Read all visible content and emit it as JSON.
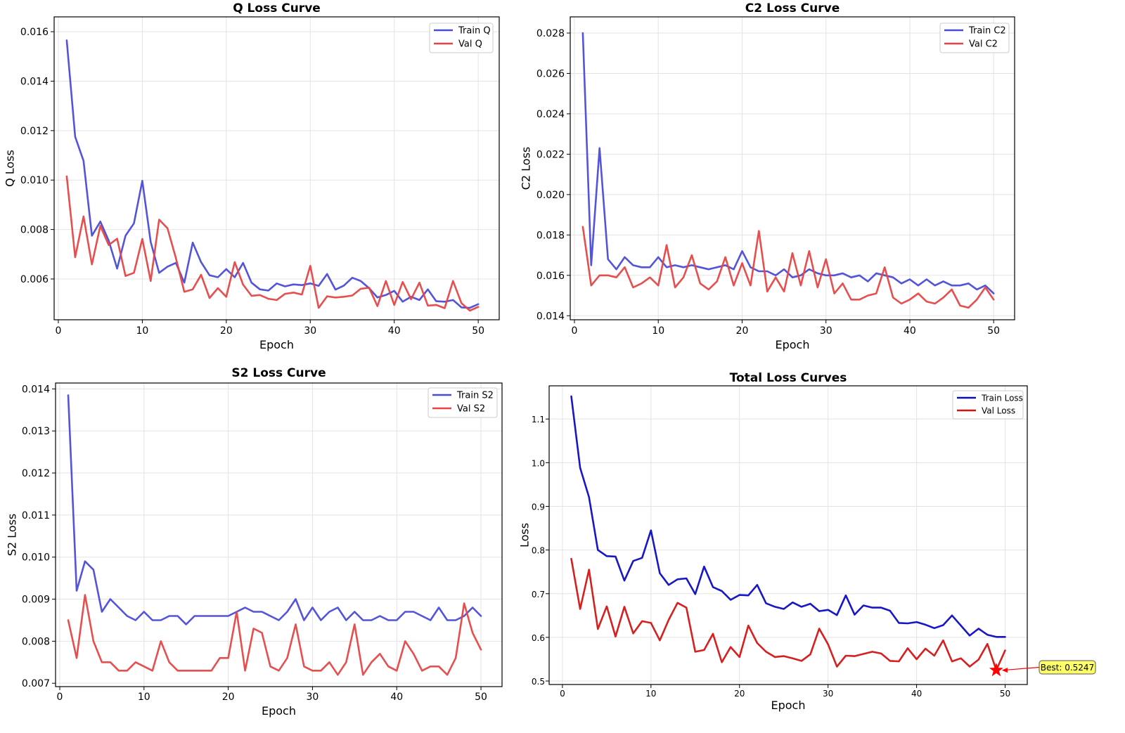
{
  "chart_data": [
    {
      "type": "line",
      "title": "Q Loss Curve",
      "xlabel": "Epoch",
      "ylabel": "Q Loss",
      "xlim": [
        -0.5,
        52.5
      ],
      "ylim": [
        0.00435,
        0.0166
      ],
      "xticks": [
        0,
        10,
        20,
        30,
        40,
        50
      ],
      "yticks": [
        0.006,
        0.008,
        0.01,
        0.012,
        0.014,
        0.016
      ],
      "ytick_labels": [
        "0.006",
        "0.008",
        "0.010",
        "0.012",
        "0.014",
        "0.016"
      ],
      "grid": true,
      "legend": "top-right",
      "x": [
        1,
        2,
        3,
        4,
        5,
        6,
        7,
        8,
        9,
        10,
        11,
        12,
        13,
        14,
        15,
        16,
        17,
        18,
        19,
        20,
        21,
        22,
        23,
        24,
        25,
        26,
        27,
        28,
        29,
        30,
        31,
        32,
        33,
        34,
        35,
        36,
        37,
        38,
        39,
        40,
        41,
        42,
        43,
        44,
        45,
        46,
        47,
        48,
        49,
        50
      ],
      "series": [
        {
          "name": "Train Q",
          "color": "#4b4bd9",
          "values": [
            0.01565,
            0.01175,
            0.01078,
            0.00775,
            0.00832,
            0.00755,
            0.00642,
            0.00775,
            0.00825,
            0.00997,
            0.0075,
            0.00625,
            0.0065,
            0.00665,
            0.00585,
            0.00747,
            0.00668,
            0.00615,
            0.00607,
            0.0064,
            0.00607,
            0.00665,
            0.00585,
            0.00558,
            0.00553,
            0.00582,
            0.0057,
            0.00578,
            0.00575,
            0.00582,
            0.00572,
            0.0062,
            0.00557,
            0.00573,
            0.00605,
            0.00592,
            0.00563,
            0.00525,
            0.00535,
            0.00552,
            0.00508,
            0.00528,
            0.00515,
            0.00558,
            0.0051,
            0.00508,
            0.00515,
            0.00485,
            0.00483,
            0.00498
          ]
        },
        {
          "name": "Val Q",
          "color": "#e64545",
          "values": [
            0.01015,
            0.00688,
            0.00853,
            0.00659,
            0.00815,
            0.00737,
            0.00763,
            0.00612,
            0.00625,
            0.00762,
            0.00592,
            0.0084,
            0.00805,
            0.00684,
            0.00548,
            0.00558,
            0.00617,
            0.00523,
            0.00563,
            0.00528,
            0.00668,
            0.00577,
            0.00532,
            0.00535,
            0.0052,
            0.00515,
            0.0054,
            0.00545,
            0.00537,
            0.00653,
            0.00483,
            0.0053,
            0.00525,
            0.00528,
            0.00533,
            0.0056,
            0.00565,
            0.0049,
            0.00592,
            0.00495,
            0.00588,
            0.00518,
            0.00585,
            0.00492,
            0.00495,
            0.00482,
            0.00592,
            0.00502,
            0.00472,
            0.00487
          ]
        }
      ]
    },
    {
      "type": "line",
      "title": "C2 Loss Curve",
      "xlabel": "Epoch",
      "ylabel": "C2 Loss",
      "xlim": [
        -0.5,
        52.5
      ],
      "ylim": [
        0.0138,
        0.0288
      ],
      "xticks": [
        0,
        10,
        20,
        30,
        40,
        50
      ],
      "yticks": [
        0.014,
        0.016,
        0.018,
        0.02,
        0.022,
        0.024,
        0.026,
        0.028
      ],
      "ytick_labels": [
        "0.014",
        "0.016",
        "0.018",
        "0.020",
        "0.022",
        "0.024",
        "0.026",
        "0.028"
      ],
      "grid": true,
      "legend": "top-right",
      "x": [
        1,
        2,
        3,
        4,
        5,
        6,
        7,
        8,
        9,
        10,
        11,
        12,
        13,
        14,
        15,
        16,
        17,
        18,
        19,
        20,
        21,
        22,
        23,
        24,
        25,
        26,
        27,
        28,
        29,
        30,
        31,
        32,
        33,
        34,
        35,
        36,
        37,
        38,
        39,
        40,
        41,
        42,
        43,
        44,
        45,
        46,
        47,
        48,
        49,
        50
      ],
      "series": [
        {
          "name": "Train C2",
          "color": "#4b4bd9",
          "values": [
            0.028,
            0.0165,
            0.0223,
            0.0168,
            0.0163,
            0.0169,
            0.0165,
            0.0164,
            0.0164,
            0.0169,
            0.0164,
            0.0165,
            0.0164,
            0.0165,
            0.0164,
            0.0163,
            0.0164,
            0.0165,
            0.0163,
            0.0172,
            0.0164,
            0.0162,
            0.0162,
            0.016,
            0.0163,
            0.0159,
            0.016,
            0.0163,
            0.0161,
            0.016,
            0.016,
            0.0161,
            0.0159,
            0.016,
            0.0157,
            0.0161,
            0.016,
            0.0159,
            0.0156,
            0.0158,
            0.0155,
            0.0158,
            0.0155,
            0.0157,
            0.0155,
            0.0155,
            0.0156,
            0.0153,
            0.0155,
            0.0151
          ]
        },
        {
          "name": "Val C2",
          "color": "#e64545",
          "values": [
            0.0184,
            0.0155,
            0.016,
            0.016,
            0.0159,
            0.0164,
            0.0154,
            0.0156,
            0.0159,
            0.0155,
            0.0175,
            0.0154,
            0.0159,
            0.017,
            0.0156,
            0.0153,
            0.0157,
            0.0169,
            0.0155,
            0.0166,
            0.0155,
            0.0182,
            0.0152,
            0.0159,
            0.0152,
            0.0171,
            0.0155,
            0.0172,
            0.0154,
            0.0168,
            0.0151,
            0.0156,
            0.0148,
            0.0148,
            0.015,
            0.0151,
            0.0164,
            0.0149,
            0.0146,
            0.0148,
            0.0151,
            0.0147,
            0.0146,
            0.0149,
            0.0153,
            0.0145,
            0.0144,
            0.0148,
            0.0154,
            0.0148
          ]
        }
      ]
    },
    {
      "type": "line",
      "title": "S2 Loss Curve",
      "xlabel": "Epoch",
      "ylabel": "S2 Loss",
      "xlim": [
        -0.5,
        52.5
      ],
      "ylim": [
        0.00692,
        0.01414
      ],
      "xticks": [
        0,
        10,
        20,
        30,
        40,
        50
      ],
      "yticks": [
        0.007,
        0.008,
        0.009,
        0.01,
        0.011,
        0.012,
        0.013,
        0.014
      ],
      "ytick_labels": [
        "0.007",
        "0.008",
        "0.009",
        "0.010",
        "0.011",
        "0.012",
        "0.013",
        "0.014"
      ],
      "grid": true,
      "legend": "top-right",
      "x": [
        1,
        2,
        3,
        4,
        5,
        6,
        7,
        8,
        9,
        10,
        11,
        12,
        13,
        14,
        15,
        16,
        17,
        18,
        19,
        20,
        21,
        22,
        23,
        24,
        25,
        26,
        27,
        28,
        29,
        30,
        31,
        32,
        33,
        34,
        35,
        36,
        37,
        38,
        39,
        40,
        41,
        42,
        43,
        44,
        45,
        46,
        47,
        48,
        49,
        50
      ],
      "series": [
        {
          "name": "Train S2",
          "color": "#4b4bd9",
          "values": [
            0.01385,
            0.0092,
            0.0099,
            0.0097,
            0.0087,
            0.009,
            0.0088,
            0.0086,
            0.0085,
            0.0087,
            0.0085,
            0.0085,
            0.0086,
            0.0086,
            0.0084,
            0.0086,
            0.0086,
            0.0086,
            0.0086,
            0.0086,
            0.0087,
            0.0088,
            0.0087,
            0.0087,
            0.0086,
            0.0085,
            0.0087,
            0.009,
            0.0085,
            0.0088,
            0.0085,
            0.0087,
            0.0088,
            0.0085,
            0.0087,
            0.0085,
            0.0085,
            0.0086,
            0.0085,
            0.0085,
            0.0087,
            0.0087,
            0.0086,
            0.0085,
            0.0088,
            0.0085,
            0.0085,
            0.0086,
            0.0088,
            0.0086
          ]
        },
        {
          "name": "Val S2",
          "color": "#e64545",
          "values": [
            0.0085,
            0.0076,
            0.0091,
            0.008,
            0.0075,
            0.0075,
            0.0073,
            0.0073,
            0.0075,
            0.0074,
            0.0073,
            0.008,
            0.0075,
            0.0073,
            0.0073,
            0.0073,
            0.0073,
            0.0073,
            0.0076,
            0.0076,
            0.0087,
            0.0073,
            0.0083,
            0.0082,
            0.0074,
            0.0073,
            0.0076,
            0.0084,
            0.0074,
            0.0073,
            0.0073,
            0.0075,
            0.0072,
            0.0075,
            0.0084,
            0.0072,
            0.0075,
            0.0077,
            0.0074,
            0.0073,
            0.008,
            0.0077,
            0.0073,
            0.0074,
            0.0074,
            0.0072,
            0.0076,
            0.0089,
            0.0082,
            0.0078
          ]
        }
      ]
    },
    {
      "type": "line",
      "title": "Total Loss Curves",
      "xlabel": "Epoch",
      "ylabel": "Loss",
      "xlim": [
        -1.5,
        52.5
      ],
      "ylim": [
        0.492,
        1.176
      ],
      "xticks": [
        0,
        10,
        20,
        30,
        40,
        50
      ],
      "yticks": [
        0.5,
        0.6,
        0.7,
        0.8,
        0.9,
        1.0,
        1.1
      ],
      "ytick_labels": [
        "0.5",
        "0.6",
        "0.7",
        "0.8",
        "0.9",
        "1.0",
        "1.1"
      ],
      "grid": true,
      "legend": "top-right",
      "x": [
        1,
        2,
        3,
        4,
        5,
        6,
        7,
        8,
        9,
        10,
        11,
        12,
        13,
        14,
        15,
        16,
        17,
        18,
        19,
        20,
        21,
        22,
        23,
        24,
        25,
        26,
        27,
        28,
        29,
        30,
        31,
        32,
        33,
        34,
        35,
        36,
        37,
        38,
        39,
        40,
        41,
        42,
        43,
        44,
        45,
        46,
        47,
        48,
        49,
        50
      ],
      "series": [
        {
          "name": "Train Loss",
          "color": "#0b0bc2",
          "values": [
            1.152,
            0.988,
            0.921,
            0.8,
            0.786,
            0.785,
            0.73,
            0.775,
            0.782,
            0.845,
            0.747,
            0.72,
            0.733,
            0.735,
            0.699,
            0.762,
            0.715,
            0.706,
            0.686,
            0.697,
            0.696,
            0.72,
            0.678,
            0.67,
            0.665,
            0.68,
            0.67,
            0.677,
            0.66,
            0.663,
            0.651,
            0.696,
            0.652,
            0.673,
            0.668,
            0.668,
            0.661,
            0.633,
            0.632,
            0.635,
            0.629,
            0.621,
            0.628,
            0.65,
            0.627,
            0.604,
            0.62,
            0.606,
            0.601,
            0.601
          ]
        },
        {
          "name": "Val Loss",
          "color": "#d41414",
          "values": [
            0.78,
            0.665,
            0.755,
            0.619,
            0.671,
            0.602,
            0.67,
            0.609,
            0.637,
            0.633,
            0.593,
            0.64,
            0.679,
            0.668,
            0.567,
            0.571,
            0.608,
            0.543,
            0.578,
            0.555,
            0.627,
            0.587,
            0.567,
            0.555,
            0.557,
            0.552,
            0.546,
            0.561,
            0.62,
            0.584,
            0.533,
            0.558,
            0.557,
            0.562,
            0.567,
            0.563,
            0.546,
            0.545,
            0.575,
            0.55,
            0.574,
            0.558,
            0.593,
            0.545,
            0.552,
            0.533,
            0.549,
            0.585,
            0.525,
            0.57
          ]
        }
      ],
      "annotation": {
        "text": "Best: 0.5247",
        "x": 49,
        "y": 0.5247,
        "marker": "star",
        "color": "#ff0000",
        "box_color": "#ffff66"
      }
    }
  ]
}
